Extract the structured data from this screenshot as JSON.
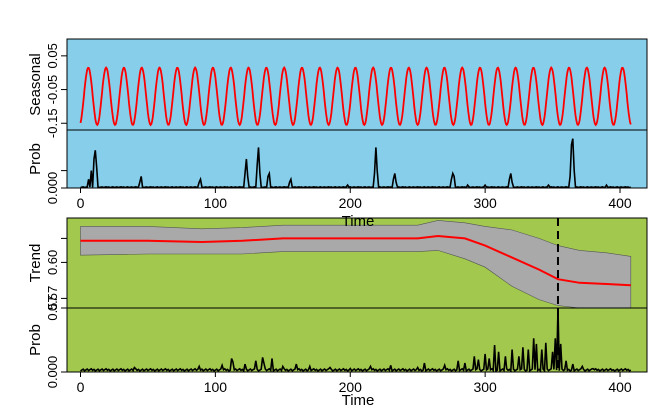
{
  "chart_data": [
    {
      "type": "line",
      "panel": "seasonal",
      "ylabel": "Seasonal",
      "background": "#87CEEB",
      "line_color": "#FF0000",
      "xlim": [
        -10,
        420
      ],
      "ylim": [
        -0.17,
        0.1
      ],
      "x_ticks": [
        0,
        100,
        200,
        300,
        400
      ],
      "y_ticks": [
        -0.15,
        -0.05,
        0.05
      ],
      "y_tick_labels": [
        "-0.15",
        "-0.05",
        "0.05"
      ],
      "series": [
        {
          "period_days": 13.2,
          "amplitude": 0.085,
          "offset": -0.07,
          "x_start": 0,
          "x_end": 408
        }
      ]
    },
    {
      "type": "line",
      "panel": "seasonal-prob",
      "ylabel": "Prob",
      "background": "#87CEEB",
      "line_color": "#000000",
      "xlim": [
        -10,
        420
      ],
      "ylim": [
        0,
        0.2
      ],
      "x_ticks": [
        0,
        100,
        200,
        300,
        400
      ],
      "y_ticks": [
        0,
        0.06
      ],
      "y_tick_labels": [
        "0.000",
        ""
      ],
      "baseline": 0.003,
      "spikes": [
        [
          6,
          0.03
        ],
        [
          8,
          0.06
        ],
        [
          10,
          0.1
        ],
        [
          11,
          0.13
        ],
        [
          12,
          0.07
        ],
        [
          44,
          0.02
        ],
        [
          45,
          0.04
        ],
        [
          88,
          0.02
        ],
        [
          89,
          0.03
        ],
        [
          122,
          0.05
        ],
        [
          123,
          0.1
        ],
        [
          124,
          0.04
        ],
        [
          131,
          0.08
        ],
        [
          132,
          0.14
        ],
        [
          133,
          0.05
        ],
        [
          139,
          0.04
        ],
        [
          140,
          0.05
        ],
        [
          155,
          0.02
        ],
        [
          156,
          0.03
        ],
        [
          198,
          0.01
        ],
        [
          218,
          0.05
        ],
        [
          219,
          0.14
        ],
        [
          220,
          0.06
        ],
        [
          232,
          0.03
        ],
        [
          233,
          0.05
        ],
        [
          234,
          0.02
        ],
        [
          275,
          0.03
        ],
        [
          276,
          0.05
        ],
        [
          277,
          0.04
        ],
        [
          287,
          0.01
        ],
        [
          300,
          0.01
        ],
        [
          318,
          0.03
        ],
        [
          319,
          0.05
        ],
        [
          320,
          0.02
        ],
        [
          347,
          0.01
        ],
        [
          363,
          0.04
        ],
        [
          364,
          0.15
        ],
        [
          365,
          0.17
        ],
        [
          366,
          0.06
        ],
        [
          390,
          0.01
        ]
      ]
    },
    {
      "type": "area",
      "panel": "trend",
      "ylabel": "Trend",
      "background": "#A2C94E",
      "band_color": "#A9A9A9",
      "line_color": "#FF0000",
      "xlim": [
        -10,
        420
      ],
      "ylim": [
        0.562,
        0.637
      ],
      "x_ticks": [
        0,
        100,
        200,
        300,
        400
      ],
      "y_ticks": [
        0.57,
        0.6,
        0.62
      ],
      "y_tick_labels": [
        "0.57",
        "0.60",
        ""
      ],
      "vline_x": 354,
      "series": [
        {
          "x": [
            0,
            50,
            90,
            120,
            150,
            200,
            250,
            265,
            285,
            300,
            320,
            340,
            354,
            370,
            390,
            408
          ],
          "mean": [
            0.618,
            0.618,
            0.617,
            0.618,
            0.62,
            0.62,
            0.62,
            0.622,
            0.62,
            0.614,
            0.604,
            0.594,
            0.586,
            0.583,
            0.582,
            0.581
          ],
          "lower": [
            0.606,
            0.607,
            0.607,
            0.607,
            0.609,
            0.609,
            0.609,
            0.61,
            0.603,
            0.596,
            0.58,
            0.569,
            0.564,
            0.562,
            0.561,
            0.56
          ],
          "upper": [
            0.63,
            0.63,
            0.628,
            0.629,
            0.631,
            0.631,
            0.631,
            0.635,
            0.633,
            0.63,
            0.627,
            0.62,
            0.614,
            0.61,
            0.608,
            0.605
          ]
        }
      ]
    },
    {
      "type": "line",
      "panel": "trend-prob",
      "ylabel": "Prob",
      "xlabel": "Time",
      "background": "#A2C94E",
      "line_color": "#000000",
      "xlim": [
        -10,
        420
      ],
      "ylim": [
        0,
        0.57
      ],
      "x_ticks": [
        0,
        100,
        200,
        300,
        400
      ],
      "y_ticks": [
        0,
        0.57
      ],
      "y_tick_labels": [
        "0.000",
        "0.57"
      ],
      "vline_x": 354,
      "baseline": 0.02,
      "spikes": [
        [
          40,
          0.04
        ],
        [
          88,
          0.05
        ],
        [
          105,
          0.06
        ],
        [
          112,
          0.12
        ],
        [
          113,
          0.09
        ],
        [
          122,
          0.07
        ],
        [
          130,
          0.1
        ],
        [
          135,
          0.13
        ],
        [
          136,
          0.08
        ],
        [
          142,
          0.12
        ],
        [
          150,
          0.05
        ],
        [
          160,
          0.07
        ],
        [
          170,
          0.05
        ],
        [
          185,
          0.04
        ],
        [
          200,
          0.03
        ],
        [
          215,
          0.05
        ],
        [
          230,
          0.06
        ],
        [
          250,
          0.04
        ],
        [
          255,
          0.08
        ],
        [
          270,
          0.06
        ],
        [
          280,
          0.1
        ],
        [
          285,
          0.08
        ],
        [
          292,
          0.14
        ],
        [
          295,
          0.11
        ],
        [
          300,
          0.16
        ],
        [
          303,
          0.12
        ],
        [
          307,
          0.24
        ],
        [
          310,
          0.18
        ],
        [
          315,
          0.14
        ],
        [
          320,
          0.2
        ],
        [
          325,
          0.14
        ],
        [
          328,
          0.22
        ],
        [
          332,
          0.2
        ],
        [
          336,
          0.3
        ],
        [
          338,
          0.25
        ],
        [
          342,
          0.2
        ],
        [
          345,
          0.26
        ],
        [
          350,
          0.18
        ],
        [
          352,
          0.3
        ],
        [
          354,
          0.57
        ],
        [
          356,
          0.25
        ],
        [
          360,
          0.1
        ],
        [
          365,
          0.07
        ],
        [
          372,
          0.05
        ],
        [
          380,
          0.03
        ],
        [
          395,
          0.02
        ]
      ]
    }
  ],
  "axes": {
    "x_label_top": "Time",
    "x_label_bottom": "Time"
  }
}
